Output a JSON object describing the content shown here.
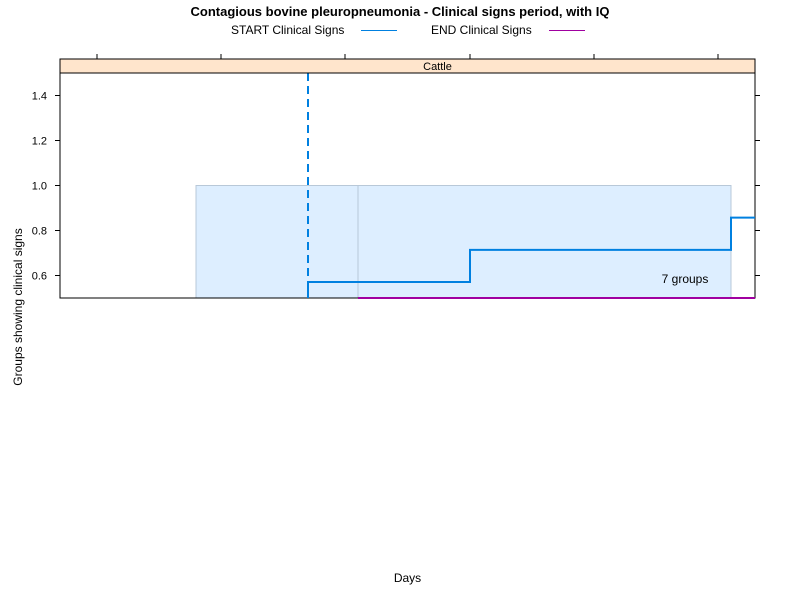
{
  "chart_data": {
    "type": "line",
    "title": "Contagious bovine pleuropneumonia - Clinical signs period, with IQ",
    "panel": "Cattle",
    "xlabel": "Days",
    "ylabel": "Groups showing clinical signs",
    "ylim": [
      0.5,
      1.5
    ],
    "y_ticks": [
      0.6,
      0.8,
      1.0,
      1.2,
      1.4
    ],
    "y_tick_labels": [
      "0.6",
      "0.8",
      "1.0",
      "1.2",
      "1.4"
    ],
    "x_tick_labels": [],
    "x_tick_marks": 6,
    "legend_position": "top",
    "series": [
      {
        "name": "START Clinical Signs",
        "color": "#0080E0",
        "step_y": [
          0.5,
          0.571,
          0.714,
          0.857
        ]
      },
      {
        "name": "END Clinical Signs",
        "color": "#A000A0",
        "step_y": [
          0.5
        ]
      }
    ],
    "interquartile_color": "#DDEEFF",
    "annotation": "7 groups"
  }
}
